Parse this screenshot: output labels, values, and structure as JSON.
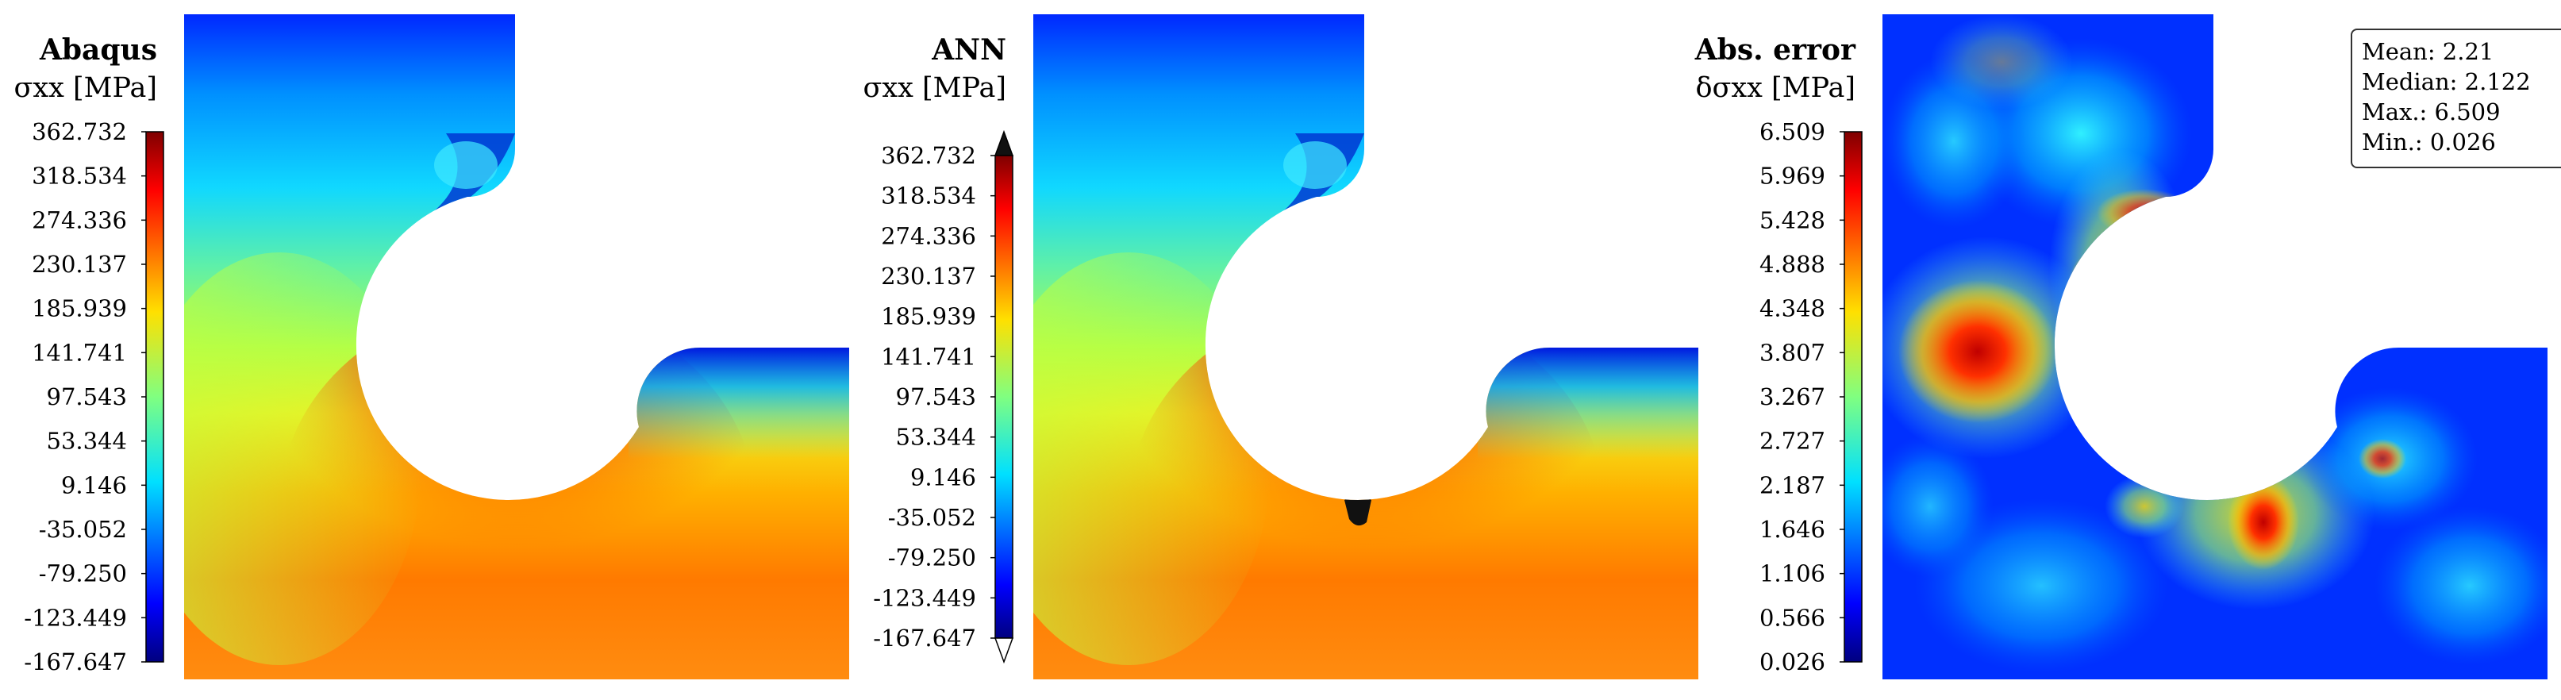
{
  "panels": [
    {
      "title": "Abaqus",
      "quantity": "σxx",
      "unit": "[MPa]",
      "ticks": [
        "362.732",
        "318.534",
        "274.336",
        "230.137",
        "185.939",
        "141.741",
        "97.543",
        "53.344",
        "9.146",
        "-35.052",
        "-79.250",
        "-123.449",
        "-167.647"
      ],
      "extend_arrows": false,
      "field": "stress"
    },
    {
      "title": "ANN",
      "quantity": "σxx",
      "unit": "[MPa]",
      "ticks": [
        "362.732",
        "318.534",
        "274.336",
        "230.137",
        "185.939",
        "141.741",
        "97.543",
        "53.344",
        "9.146",
        "-35.052",
        "-79.250",
        "-123.449",
        "-167.647"
      ],
      "extend_arrows": true,
      "field": "stress"
    },
    {
      "title": "Abs. error",
      "quantity": "δσxx",
      "unit": "[MPa]",
      "ticks": [
        "6.509",
        "5.969",
        "5.428",
        "4.888",
        "4.348",
        "3.807",
        "3.267",
        "2.727",
        "2.187",
        "1.646",
        "1.106",
        "0.566",
        "0.026"
      ],
      "extend_arrows": false,
      "field": "error"
    }
  ],
  "stats": {
    "mean": "Mean: 2.21",
    "median": "Median: 2.122",
    "max": "Max.: 6.509",
    "min": "Min.: 0.026"
  },
  "colormap": "jet",
  "chart_data": [
    {
      "type": "heatmap",
      "title": "Abaqus",
      "colorbar_label": "σxx [MPa]",
      "colorbar_range": [
        -167.647,
        362.732
      ],
      "colorbar_ticks": [
        362.732,
        318.534,
        274.336,
        230.137,
        185.939,
        141.741,
        97.543,
        53.344,
        9.146,
        -35.052,
        -79.25,
        -123.449,
        -167.647
      ]
    },
    {
      "type": "heatmap",
      "title": "ANN",
      "colorbar_label": "σxx [MPa]",
      "colorbar_range": [
        -167.647,
        362.732
      ],
      "colorbar_ticks": [
        362.732,
        318.534,
        274.336,
        230.137,
        185.939,
        141.741,
        97.543,
        53.344,
        9.146,
        -35.052,
        -79.25,
        -123.449,
        -167.647
      ]
    },
    {
      "type": "heatmap",
      "title": "Abs. error",
      "colorbar_label": "δσxx [MPa]",
      "colorbar_range": [
        0.026,
        6.509
      ],
      "colorbar_ticks": [
        6.509,
        5.969,
        5.428,
        4.888,
        4.348,
        3.807,
        3.267,
        2.727,
        2.187,
        1.646,
        1.106,
        0.566,
        0.026
      ],
      "stats": {
        "mean": 2.21,
        "median": 2.122,
        "max": 6.509,
        "min": 0.026
      }
    }
  ]
}
